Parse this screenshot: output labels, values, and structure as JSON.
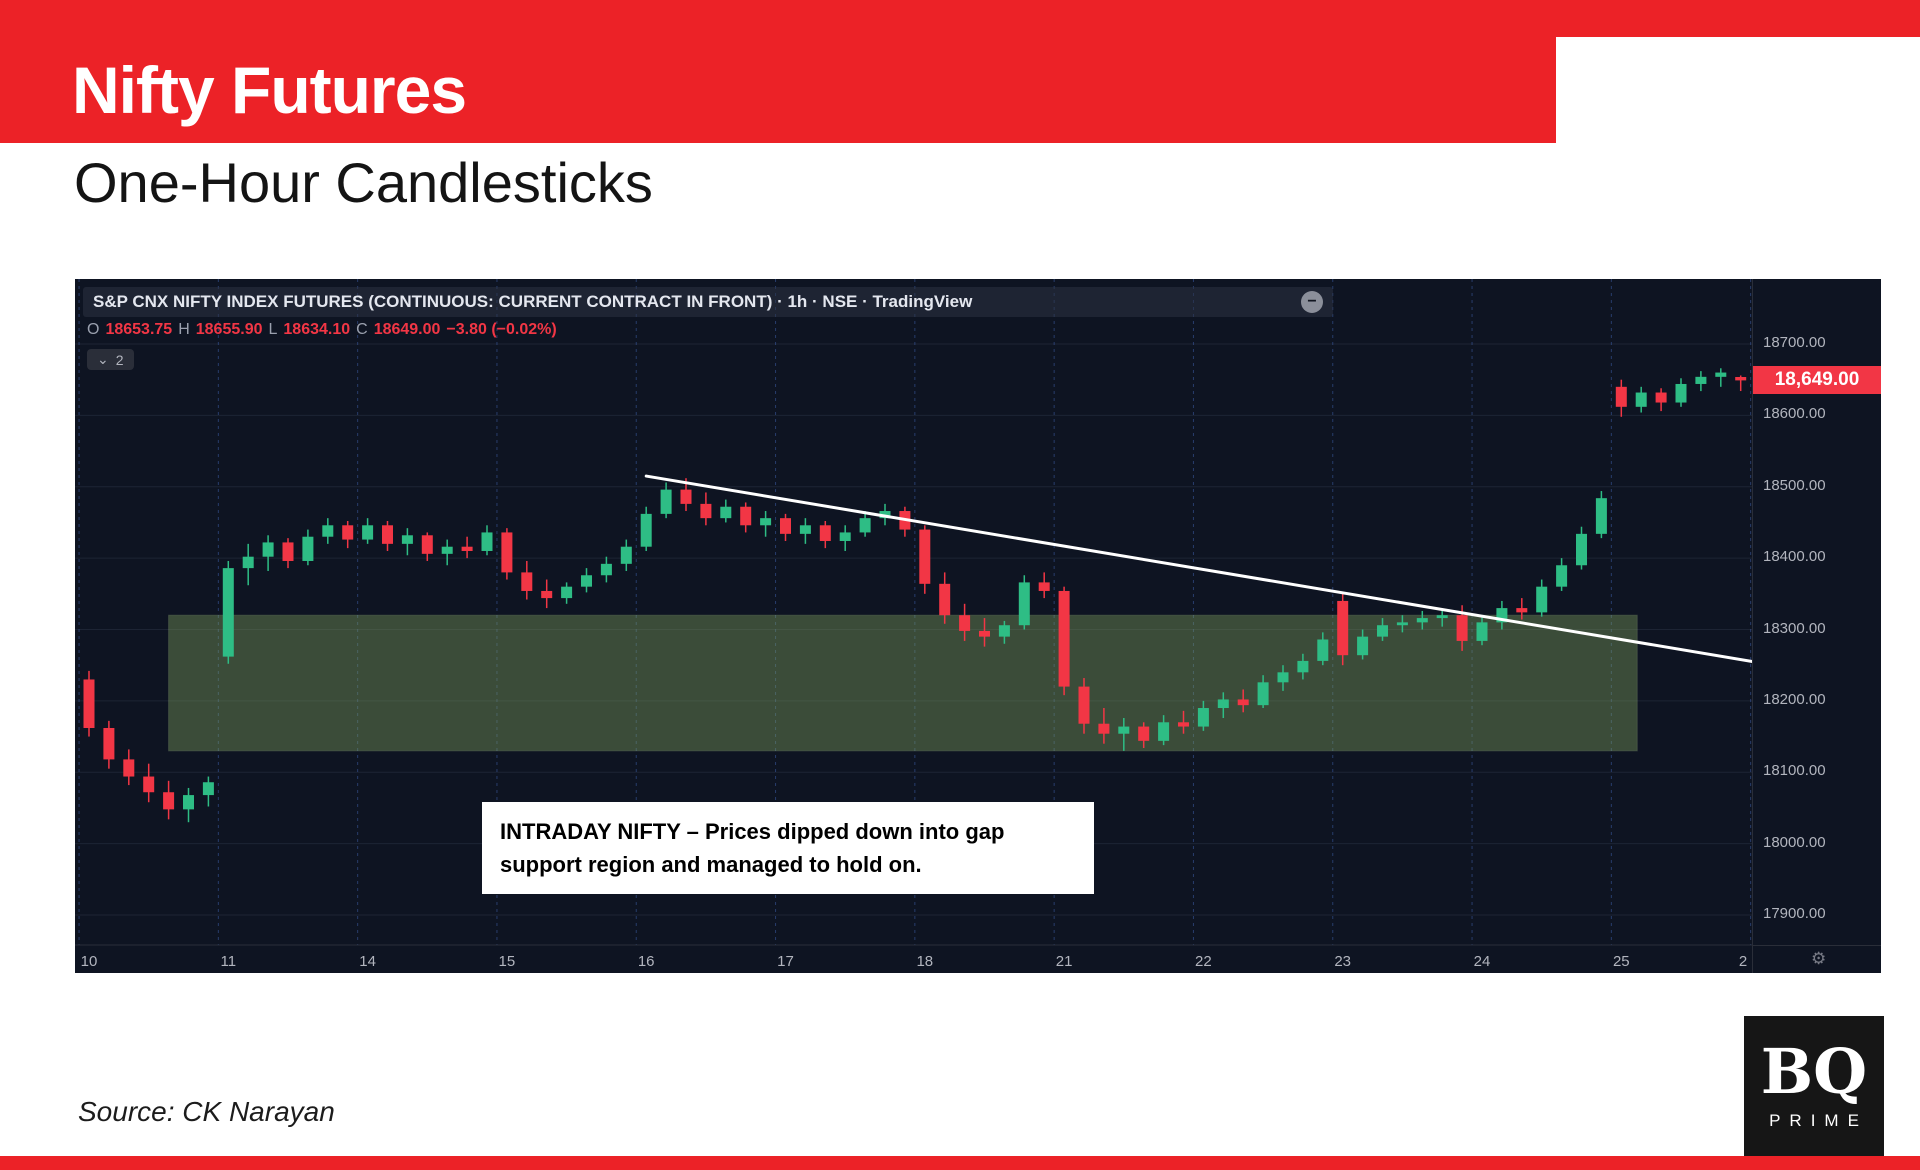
{
  "header": {
    "banner_title": "Nifty Futures",
    "subtitle": "One-Hour Candlesticks",
    "banner_color": "#ec2227"
  },
  "footer": {
    "source": "Source: CK Narayan",
    "logo_top": "BQ",
    "logo_bottom": "PRIME"
  },
  "chart": {
    "title": "S&P CNX NIFTY INDEX FUTURES (CONTINUOUS: CURRENT CONTRACT IN FRONT) · 1h · NSE · TradingView",
    "ohlc": {
      "o_label": "O",
      "o": "18653.75",
      "h_label": "H",
      "h": "18655.90",
      "l_label": "L",
      "l": "18634.10",
      "c_label": "C",
      "c": "18649.00",
      "change": "−3.80 (−0.02%)"
    },
    "legend_badge": "2",
    "price_tag": "18,649.00",
    "annotation_text": "INTRADAY NIFTY – Prices dipped down into gap support region and managed to hold on.",
    "icons": {
      "minimize": "−",
      "chevron_down": "⌄",
      "gear": "⚙"
    },
    "colors": {
      "bg": "#0e1422",
      "up": "#2ebd85",
      "down": "#f23645",
      "grid_h": "#1d2434",
      "grid_v": "#3d5da8",
      "axis_text": "#b2b5be",
      "tag_bg": "#f23645",
      "gap_fill": "#7a9a5a",
      "gap_stroke": "rgba(190,220,150,0.5)",
      "trendline": "#ffffff",
      "border": "#2a2e39"
    }
  },
  "chart_data": {
    "type": "candlestick",
    "symbol": "S&P CNX NIFTY INDEX FUTURES (CONTINUOUS: CURRENT CONTRACT IN FRONT)",
    "interval": "1h",
    "exchange": "NSE",
    "ylim": [
      17900,
      18700
    ],
    "y_ticks": [
      18700,
      18600,
      18500,
      18400,
      18300,
      18200,
      18100,
      18000,
      17900
    ],
    "last_price": 18649.0,
    "days": [
      {
        "label": "10",
        "candles": [
          [
            18230,
            18242,
            18150,
            18162
          ],
          [
            18162,
            18172,
            18105,
            18118
          ],
          [
            18118,
            18132,
            18082,
            18094
          ],
          [
            18094,
            18112,
            18058,
            18072
          ],
          [
            18072,
            18088,
            18034,
            18048
          ],
          [
            18048,
            18078,
            18030,
            18068
          ],
          [
            18068,
            18094,
            18052,
            18086
          ]
        ]
      },
      {
        "label": "11",
        "candles": [
          [
            18262,
            18396,
            18252,
            18386
          ],
          [
            18386,
            18420,
            18362,
            18402
          ],
          [
            18402,
            18432,
            18382,
            18422
          ],
          [
            18422,
            18428,
            18386,
            18396
          ],
          [
            18396,
            18440,
            18390,
            18430
          ],
          [
            18430,
            18456,
            18420,
            18446
          ],
          [
            18446,
            18452,
            18414,
            18426
          ]
        ]
      },
      {
        "label": "14",
        "candles": [
          [
            18426,
            18456,
            18420,
            18446
          ],
          [
            18446,
            18452,
            18410,
            18420
          ],
          [
            18420,
            18442,
            18404,
            18432
          ],
          [
            18432,
            18436,
            18396,
            18406
          ],
          [
            18406,
            18426,
            18390,
            18416
          ],
          [
            18416,
            18430,
            18400,
            18410
          ],
          [
            18410,
            18446,
            18404,
            18436
          ]
        ]
      },
      {
        "label": "15",
        "candles": [
          [
            18436,
            18442,
            18370,
            18380
          ],
          [
            18380,
            18396,
            18342,
            18354
          ],
          [
            18354,
            18370,
            18330,
            18344
          ],
          [
            18344,
            18366,
            18336,
            18360
          ],
          [
            18360,
            18386,
            18352,
            18376
          ],
          [
            18376,
            18402,
            18366,
            18392
          ],
          [
            18392,
            18426,
            18382,
            18416
          ]
        ]
      },
      {
        "label": "16",
        "candles": [
          [
            18416,
            18472,
            18410,
            18462
          ],
          [
            18462,
            18506,
            18456,
            18496
          ],
          [
            18496,
            18512,
            18466,
            18476
          ],
          [
            18476,
            18492,
            18446,
            18456
          ],
          [
            18456,
            18482,
            18450,
            18472
          ],
          [
            18472,
            18478,
            18436,
            18446
          ],
          [
            18446,
            18466,
            18430,
            18456
          ]
        ]
      },
      {
        "label": "17",
        "candles": [
          [
            18456,
            18462,
            18424,
            18434
          ],
          [
            18434,
            18456,
            18420,
            18446
          ],
          [
            18446,
            18452,
            18414,
            18424
          ],
          [
            18424,
            18446,
            18410,
            18436
          ],
          [
            18436,
            18466,
            18430,
            18456
          ],
          [
            18456,
            18476,
            18446,
            18466
          ],
          [
            18466,
            18472,
            18430,
            18440
          ]
        ]
      },
      {
        "label": "18",
        "candles": [
          [
            18440,
            18446,
            18350,
            18364
          ],
          [
            18364,
            18380,
            18308,
            18320
          ],
          [
            18320,
            18336,
            18284,
            18298
          ],
          [
            18298,
            18316,
            18276,
            18290
          ],
          [
            18290,
            18312,
            18280,
            18306
          ],
          [
            18306,
            18376,
            18300,
            18366
          ],
          [
            18366,
            18380,
            18344,
            18354
          ]
        ]
      },
      {
        "label": "21",
        "candles": [
          [
            18354,
            18360,
            18208,
            18220
          ],
          [
            18220,
            18232,
            18154,
            18168
          ],
          [
            18168,
            18190,
            18140,
            18154
          ],
          [
            18154,
            18176,
            18130,
            18164
          ],
          [
            18164,
            18170,
            18134,
            18144
          ],
          [
            18144,
            18180,
            18138,
            18170
          ],
          [
            18170,
            18186,
            18154,
            18164
          ]
        ]
      },
      {
        "label": "22",
        "candles": [
          [
            18164,
            18200,
            18158,
            18190
          ],
          [
            18190,
            18212,
            18176,
            18202
          ],
          [
            18202,
            18216,
            18184,
            18194
          ],
          [
            18194,
            18236,
            18190,
            18226
          ],
          [
            18226,
            18250,
            18214,
            18240
          ],
          [
            18240,
            18266,
            18230,
            18256
          ],
          [
            18256,
            18296,
            18250,
            18286
          ]
        ]
      },
      {
        "label": "23",
        "candles": [
          [
            18340,
            18350,
            18250,
            18264
          ],
          [
            18264,
            18300,
            18258,
            18290
          ],
          [
            18290,
            18316,
            18284,
            18306
          ],
          [
            18306,
            18320,
            18296,
            18310
          ],
          [
            18310,
            18326,
            18300,
            18316
          ],
          [
            18316,
            18330,
            18304,
            18320
          ],
          [
            18320,
            18334,
            18270,
            18284
          ]
        ]
      },
      {
        "label": "24",
        "candles": [
          [
            18284,
            18320,
            18278,
            18310
          ],
          [
            18310,
            18340,
            18300,
            18330
          ],
          [
            18330,
            18344,
            18314,
            18324
          ],
          [
            18324,
            18370,
            18318,
            18360
          ],
          [
            18360,
            18400,
            18354,
            18390
          ],
          [
            18390,
            18444,
            18384,
            18434
          ],
          [
            18434,
            18494,
            18428,
            18484
          ]
        ]
      },
      {
        "label": "25",
        "candles": [
          [
            18640,
            18650,
            18598,
            18612
          ],
          [
            18612,
            18640,
            18604,
            18632
          ],
          [
            18632,
            18638,
            18606,
            18618
          ],
          [
            18618,
            18652,
            18612,
            18644
          ],
          [
            18644,
            18662,
            18634,
            18654
          ],
          [
            18654,
            18666,
            18640,
            18660
          ],
          [
            18653.75,
            18655.9,
            18634.1,
            18649
          ]
        ]
      },
      {
        "label": "2",
        "candles": []
      }
    ],
    "gap_region": {
      "price_top": 18320,
      "price_bottom": 18130,
      "start_index": 4.5,
      "end_index": 77.8
    },
    "trendline": {
      "start_index": 28,
      "start_price": 18515,
      "end_index": 84.5,
      "end_price": 18255
    }
  }
}
